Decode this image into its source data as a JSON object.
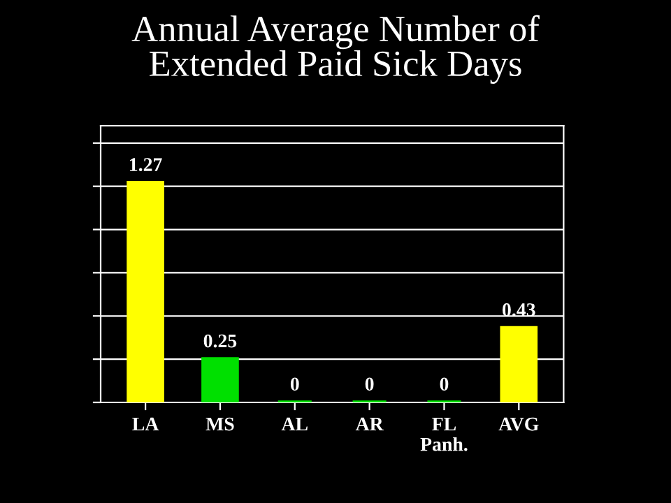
{
  "chart_data": {
    "type": "bar",
    "title": "Annual Average Number of\nExtended Paid Sick Days",
    "categories": [
      "LA",
      "MS",
      "AL",
      "AR",
      "FL\nPanh.",
      "AVG"
    ],
    "values": [
      1.27,
      0.25,
      0,
      0,
      0,
      0.43
    ],
    "colors": [
      "#ffff00",
      "#00e000",
      "#00e000",
      "#00e000",
      "#00e000",
      "#ffff00"
    ],
    "data_labels": true,
    "grid": "y",
    "tick_labels": "x"
  }
}
